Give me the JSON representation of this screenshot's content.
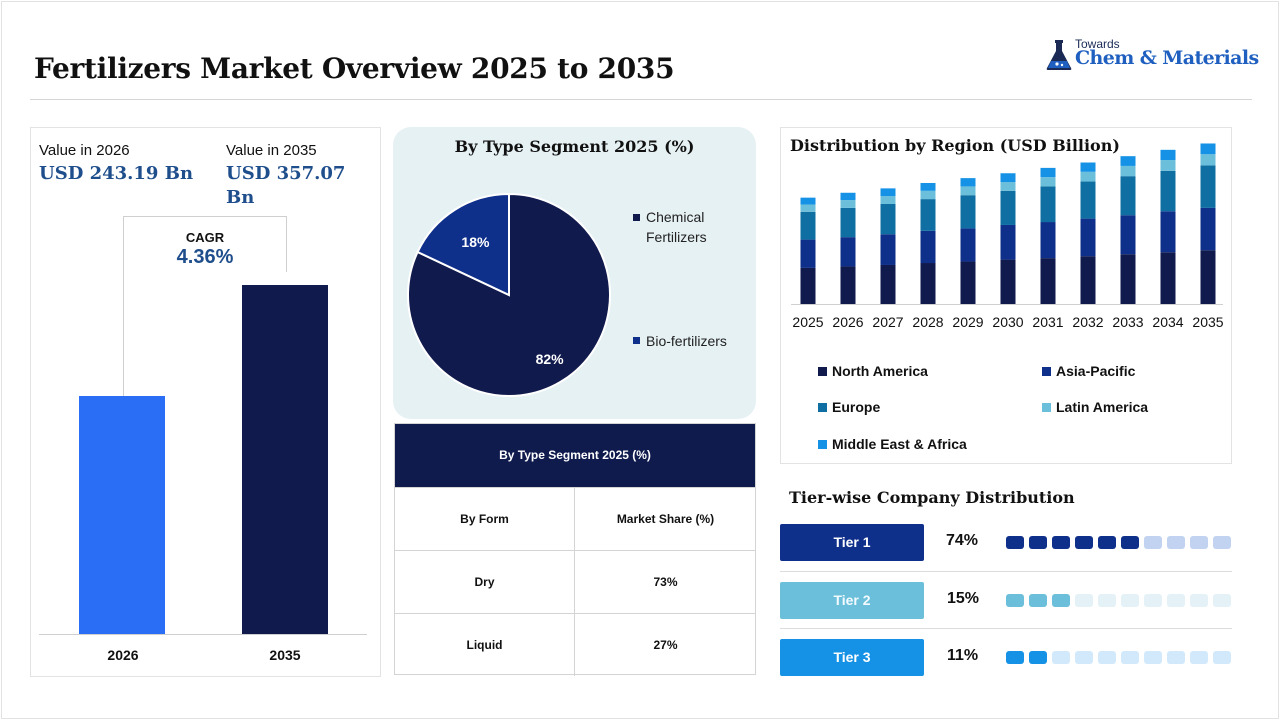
{
  "header": {
    "title": "Fertilizers Market Overview 2025 to 2035",
    "logo_small": "Towards",
    "logo_big": "Chem & Materials"
  },
  "market_size": {
    "label_2026": "Value in 2026",
    "value_2026": "USD 243.19 Bn",
    "label_2035": "Value in 2035",
    "value_2035": "USD 357.07 Bn",
    "cagr_label": "CAGR",
    "cagr_value": "4.36%",
    "colors": {
      "2026": "#2a6ef5",
      "2035": "#111a4d"
    }
  },
  "type_segment": {
    "title": "By Type Segment 2025 (%)",
    "slices": [
      {
        "label": "Chemical Fertilizers",
        "value": 82,
        "text": "82%",
        "color": "#111a4d"
      },
      {
        "label": "Bio-fertilizers",
        "value": 18,
        "text": "18%",
        "color": "#0e2f8a"
      }
    ]
  },
  "form_table": {
    "title": "By Type  Segment 2025 (%)",
    "headers": [
      "By Form",
      "Market Share (%)"
    ],
    "rows": [
      {
        "form": "Dry",
        "share": "73%"
      },
      {
        "form": "Liquid",
        "share": "27%"
      }
    ]
  },
  "region": {
    "title": "Distribution by Region (USD Billion)",
    "legend": [
      {
        "name": "North America",
        "color": "#111a4d"
      },
      {
        "name": "Asia-Pacific",
        "color": "#0e2f8a"
      },
      {
        "name": "Europe",
        "color": "#0f6fa3"
      },
      {
        "name": "Latin America",
        "color": "#6cbfda"
      },
      {
        "name": "Middle East & Africa",
        "color": "#1592e6"
      }
    ]
  },
  "tiers": {
    "title": "Tier-wise Company Distribution",
    "items": [
      {
        "label": "Tier 1",
        "pct": "74%",
        "value": 74,
        "filled": 6,
        "color": "#0e2f8a",
        "text_color": "#ffffff",
        "dot_on": "#0e2f8a",
        "dot_off": "#c2d3f2"
      },
      {
        "label": "Tier 2",
        "pct": "15%",
        "value": 15,
        "filled": 3,
        "color": "#6cbfda",
        "text_color": "#f2fbff",
        "dot_on": "#6cbfda",
        "dot_off": "#e4f2f8"
      },
      {
        "label": "Tier 3",
        "pct": "11%",
        "value": 11,
        "filled": 2,
        "color": "#1592e6",
        "text_color": "#ffffff",
        "dot_on": "#1592e6",
        "dot_off": "#d2e9fb"
      }
    ]
  },
  "chart_data": [
    {
      "type": "bar",
      "title": "",
      "categories": [
        "2026",
        "2035"
      ],
      "values": [
        243.19,
        357.07
      ],
      "ylabel": "",
      "xlabel": ""
    },
    {
      "type": "pie",
      "title": "By Type Segment 2025 (%)",
      "labels": [
        "Chemical Fertilizers",
        "Bio-fertilizers"
      ],
      "values": [
        82,
        18
      ]
    },
    {
      "type": "table",
      "title": "By Type  Segment 2025 (%)",
      "columns": [
        "By Form",
        "Market Share (%)"
      ],
      "rows": [
        [
          "Dry",
          "73%"
        ],
        [
          "Liquid",
          "27%"
        ]
      ]
    },
    {
      "type": "bar",
      "stacked": true,
      "title": "Distribution by Region (USD Billion)",
      "categories": [
        "2025",
        "2026",
        "2027",
        "2028",
        "2029",
        "2030",
        "2031",
        "2032",
        "2033",
        "2034",
        "2035"
      ],
      "series": [
        {
          "name": "North America",
          "values": [
            74,
            77,
            80,
            84,
            87,
            91,
            94,
            98,
            102,
            106,
            110
          ]
        },
        {
          "name": "Asia-Pacific",
          "values": [
            58,
            60,
            63,
            66,
            68,
            71,
            74,
            77,
            80,
            84,
            87
          ]
        },
        {
          "name": "Europe",
          "values": [
            57,
            60,
            62,
            65,
            68,
            70,
            73,
            76,
            80,
            83,
            87
          ]
        },
        {
          "name": "Latin America",
          "values": [
            15,
            16,
            16,
            17,
            18,
            18,
            19,
            20,
            21,
            22,
            23
          ]
        },
        {
          "name": "Middle East & Africa",
          "values": [
            14,
            15,
            16,
            16,
            17,
            18,
            19,
            19,
            20,
            21,
            22
          ]
        }
      ],
      "legend": "bottom",
      "grid": false
    }
  ]
}
